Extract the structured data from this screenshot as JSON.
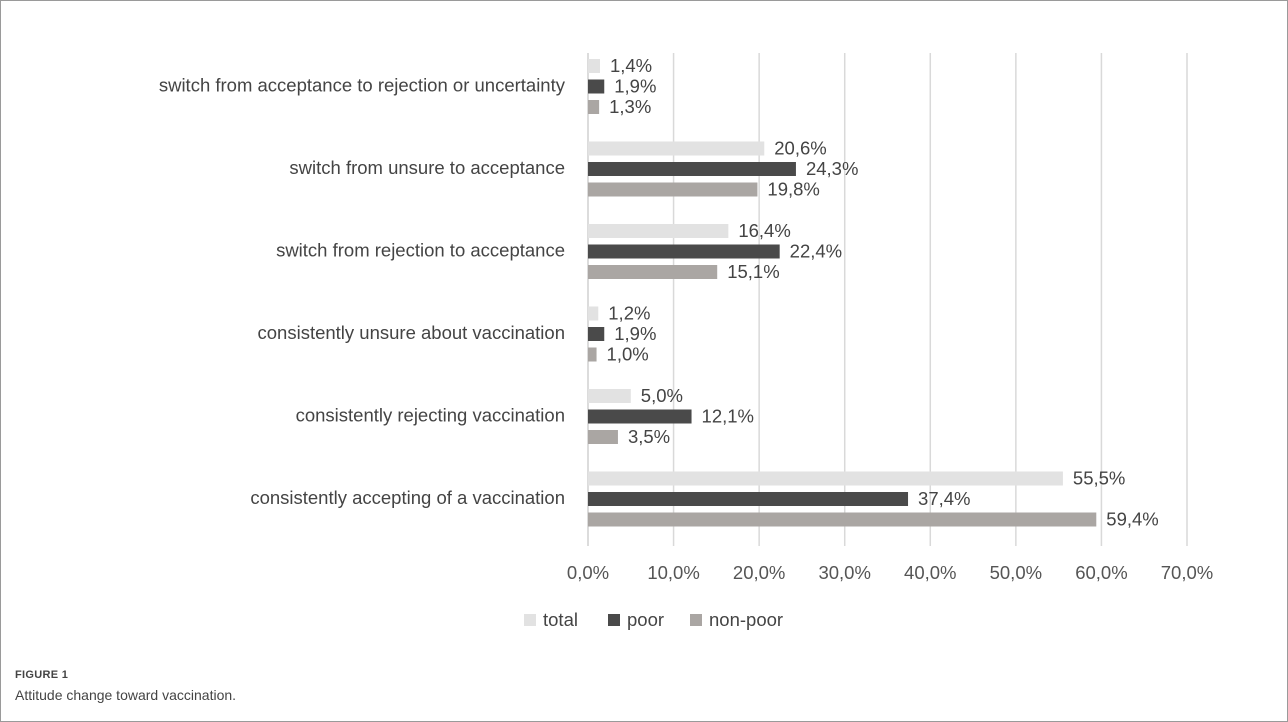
{
  "figure": {
    "label": "FIGURE 1",
    "caption": "Attitude change toward vaccination."
  },
  "chart_data": {
    "type": "bar",
    "orientation": "horizontal",
    "categories": [
      "switch from acceptance to rejection or uncertainty",
      "switch from unsure to acceptance",
      "switch from rejection to acceptance",
      "consistently unsure about vaccination",
      "consistently rejecting vaccination",
      "consistently accepting of a vaccination"
    ],
    "series": [
      {
        "name": "total",
        "color": "#e2e2e2",
        "values": [
          1.4,
          20.6,
          16.4,
          1.2,
          5.0,
          55.5
        ],
        "labels": [
          "1,4%",
          "20,6%",
          "16,4%",
          "1,2%",
          "5,0%",
          "55,5%"
        ]
      },
      {
        "name": "poor",
        "color": "#4a4a4a",
        "values": [
          1.9,
          24.3,
          22.4,
          1.9,
          12.1,
          37.4
        ],
        "labels": [
          "1,9%",
          "24,3%",
          "22,4%",
          "1,9%",
          "12,1%",
          "37,4%"
        ]
      },
      {
        "name": "non-poor",
        "color": "#aaa6a3",
        "values": [
          1.3,
          19.8,
          15.1,
          1.0,
          3.5,
          59.4
        ],
        "labels": [
          "1,3%",
          "19,8%",
          "15,1%",
          "1,0%",
          "3,5%",
          "59,4%"
        ]
      }
    ],
    "xlim": [
      0,
      70
    ],
    "xticks": [
      0,
      10,
      20,
      30,
      40,
      50,
      60,
      70
    ],
    "xtick_labels": [
      "0,0%",
      "10,0%",
      "20,0%",
      "30,0%",
      "40,0%",
      "50,0%",
      "60,0%",
      "70,0%"
    ],
    "grid": true,
    "legend_position": "bottom-center",
    "title": "",
    "xlabel": "",
    "ylabel": ""
  }
}
